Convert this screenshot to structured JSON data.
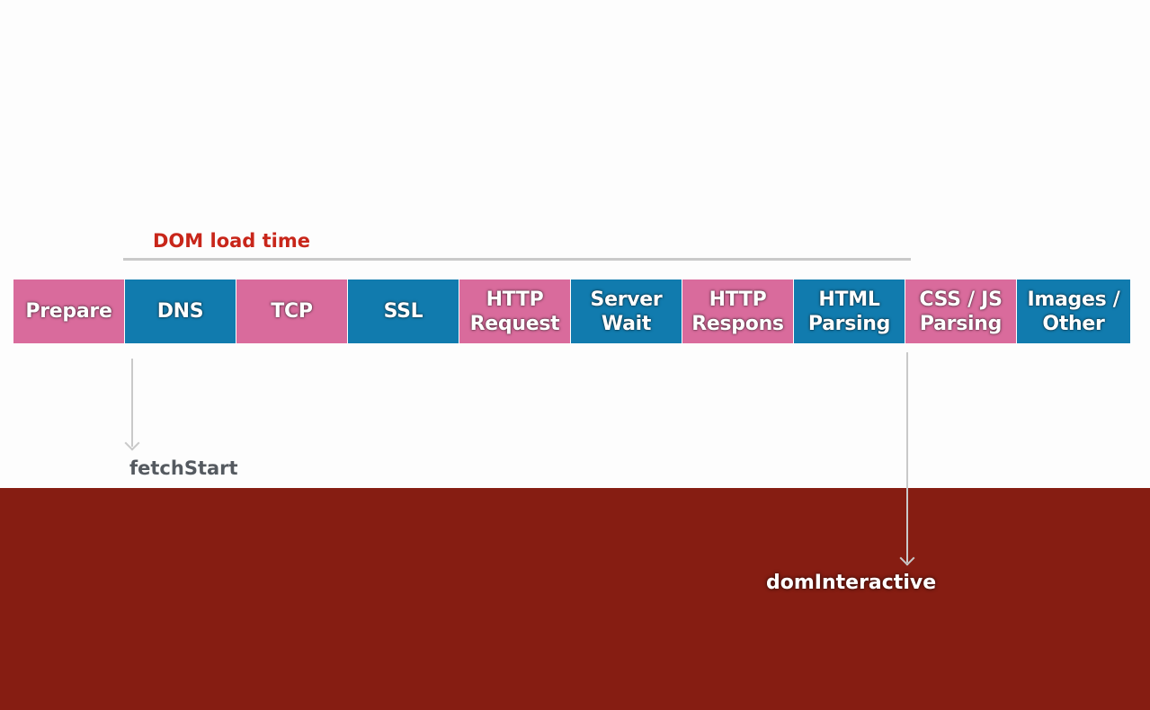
{
  "title": "DOM load time",
  "phases": [
    {
      "line1": "Prepare",
      "line2": "",
      "color": "#d96b9c"
    },
    {
      "line1": "DNS",
      "line2": "",
      "color": "#117bae"
    },
    {
      "line1": "TCP",
      "line2": "",
      "color": "#d96b9c"
    },
    {
      "line1": "SSL",
      "line2": "",
      "color": "#117bae"
    },
    {
      "line1": "HTTP",
      "line2": "Request",
      "color": "#d96b9c"
    },
    {
      "line1": "Server",
      "line2": "Wait",
      "color": "#117bae"
    },
    {
      "line1": "HTTP",
      "line2": "Respons",
      "color": "#d96b9c"
    },
    {
      "line1": "HTML",
      "line2": "Parsing",
      "color": "#117bae"
    },
    {
      "line1": "CSS / JS",
      "line2": "Parsing",
      "color": "#d96b9c"
    },
    {
      "line1": "Images /",
      "line2": "Other",
      "color": "#117bae"
    }
  ],
  "markers": {
    "fetch_start": "fetchStart",
    "dom_interactive": "domInteractive"
  },
  "colors": {
    "title": "#c8261a",
    "pink": "#d96b9c",
    "blue": "#117bae",
    "band": "#861d12",
    "line": "#c9c9c9"
  }
}
